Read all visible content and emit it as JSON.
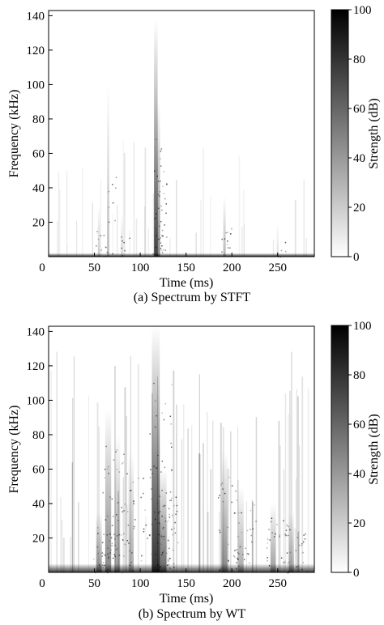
{
  "chart_data": [
    {
      "type": "heatmap",
      "caption": "(a) Spectrum by STFT",
      "xlabel": "Time (ms)",
      "ylabel": "Frequency (kHz)",
      "xlim": [
        0,
        290
      ],
      "ylim": [
        0,
        143
      ],
      "x_ticks": [
        0,
        50,
        100,
        150,
        200,
        250
      ],
      "y_ticks": [
        20,
        40,
        60,
        80,
        100,
        120,
        140
      ],
      "colorbar": {
        "label": "Strength (dB)",
        "range": [
          0,
          100
        ],
        "ticks": [
          0,
          20,
          40,
          60,
          80,
          100
        ],
        "colormap": "gray-reversed"
      },
      "features": [
        {
          "time_ms": 117,
          "fmax_khz": 138,
          "strength": 85
        },
        {
          "time_ms": 120,
          "fmax_khz": 90,
          "strength": 55
        },
        {
          "time_ms": 65,
          "fmax_khz": 100,
          "strength": 30
        },
        {
          "time_ms": 55,
          "fmax_khz": 30,
          "strength": 25
        },
        {
          "time_ms": 80,
          "fmax_khz": 25,
          "strength": 20
        },
        {
          "time_ms": 192,
          "fmax_khz": 35,
          "strength": 35
        },
        {
          "time_ms": 250,
          "fmax_khz": 20,
          "strength": 15
        },
        {
          "time_ms": 0,
          "fmax_khz": 2,
          "strength": 100,
          "note": "baseline band across full time"
        }
      ]
    },
    {
      "type": "heatmap",
      "caption": "(b) Spectrum by WT",
      "xlabel": "Time (ms)",
      "ylabel": "Frequency (kHz)",
      "xlim": [
        0,
        290
      ],
      "ylim": [
        0,
        143
      ],
      "x_ticks": [
        0,
        50,
        100,
        150,
        200,
        250
      ],
      "y_ticks": [
        20,
        40,
        60,
        80,
        100,
        120,
        140
      ],
      "colorbar": {
        "label": "Strength (dB)",
        "range": [
          0,
          100
        ],
        "ticks": [
          0,
          20,
          40,
          60,
          80,
          100
        ],
        "colormap": "gray-reversed"
      },
      "features": [
        {
          "time_ms": 117,
          "fmax_khz": 143,
          "strength": 95
        },
        {
          "time_ms": 125,
          "fmax_khz": 60,
          "strength": 70
        },
        {
          "time_ms": 65,
          "fmax_khz": 95,
          "strength": 55
        },
        {
          "time_ms": 75,
          "fmax_khz": 80,
          "strength": 45
        },
        {
          "time_ms": 90,
          "fmax_khz": 70,
          "strength": 40
        },
        {
          "time_ms": 55,
          "fmax_khz": 35,
          "strength": 50
        },
        {
          "time_ms": 192,
          "fmax_khz": 70,
          "strength": 55
        },
        {
          "time_ms": 210,
          "fmax_khz": 50,
          "strength": 40
        },
        {
          "time_ms": 245,
          "fmax_khz": 40,
          "strength": 45
        },
        {
          "time_ms": 265,
          "fmax_khz": 35,
          "strength": 40
        },
        {
          "time_ms": 0,
          "fmax_khz": 5,
          "strength": 90,
          "note": "strong low-frequency band across full time"
        }
      ]
    }
  ]
}
